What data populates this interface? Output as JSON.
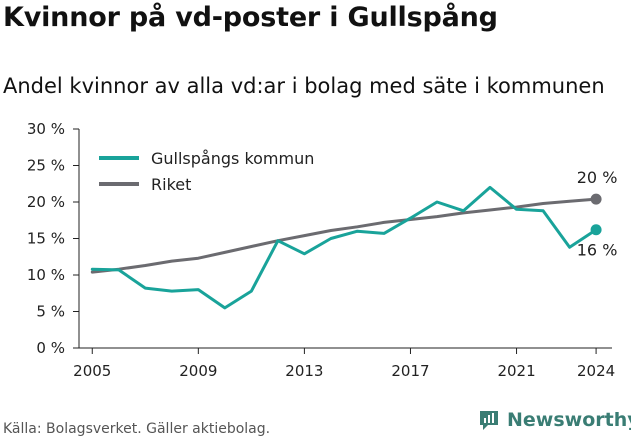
{
  "title": "Kvinnor på vd-poster i Gullspång",
  "subtitle": "Andel kvinnor av alla vd:ar i bolag med säte i kommunen",
  "source": "Källa: Bolagsverket. Gäller aktiebolag.",
  "brand": {
    "name": "Newsworthy",
    "icon": "newsworthy-logo-icon",
    "color": "#3a7d74"
  },
  "chart_data": {
    "type": "line",
    "x": [
      2005,
      2006,
      2007,
      2008,
      2009,
      2010,
      2011,
      2012,
      2013,
      2014,
      2015,
      2016,
      2017,
      2018,
      2019,
      2020,
      2021,
      2022,
      2023,
      2024
    ],
    "series": [
      {
        "name": "Gullspångs kommun",
        "color": "#19a39a",
        "values": [
          10.8,
          10.7,
          8.2,
          7.8,
          8.0,
          5.5,
          7.8,
          14.7,
          12.9,
          15.0,
          16.0,
          15.7,
          17.8,
          20.0,
          18.8,
          22.0,
          19.0,
          18.8,
          13.8,
          16.2
        ],
        "end_label": "16 %"
      },
      {
        "name": "Riket",
        "color": "#6b6b70",
        "values": [
          10.4,
          10.8,
          11.3,
          11.9,
          12.3,
          13.1,
          13.9,
          14.7,
          15.4,
          16.1,
          16.6,
          17.2,
          17.6,
          18.0,
          18.5,
          18.9,
          19.3,
          19.8,
          20.1,
          20.4
        ],
        "end_label": "20 %"
      }
    ],
    "yticks": [
      "0 %",
      "5 %",
      "10 %",
      "15 %",
      "20 %",
      "25 %",
      "30 %"
    ],
    "xticks": [
      "2005",
      "2009",
      "2013",
      "2017",
      "2021",
      "2024"
    ],
    "ylim": [
      0,
      30
    ],
    "xlim": [
      2004.5,
      2024.6
    ],
    "grid": false,
    "legend": "top-left"
  }
}
